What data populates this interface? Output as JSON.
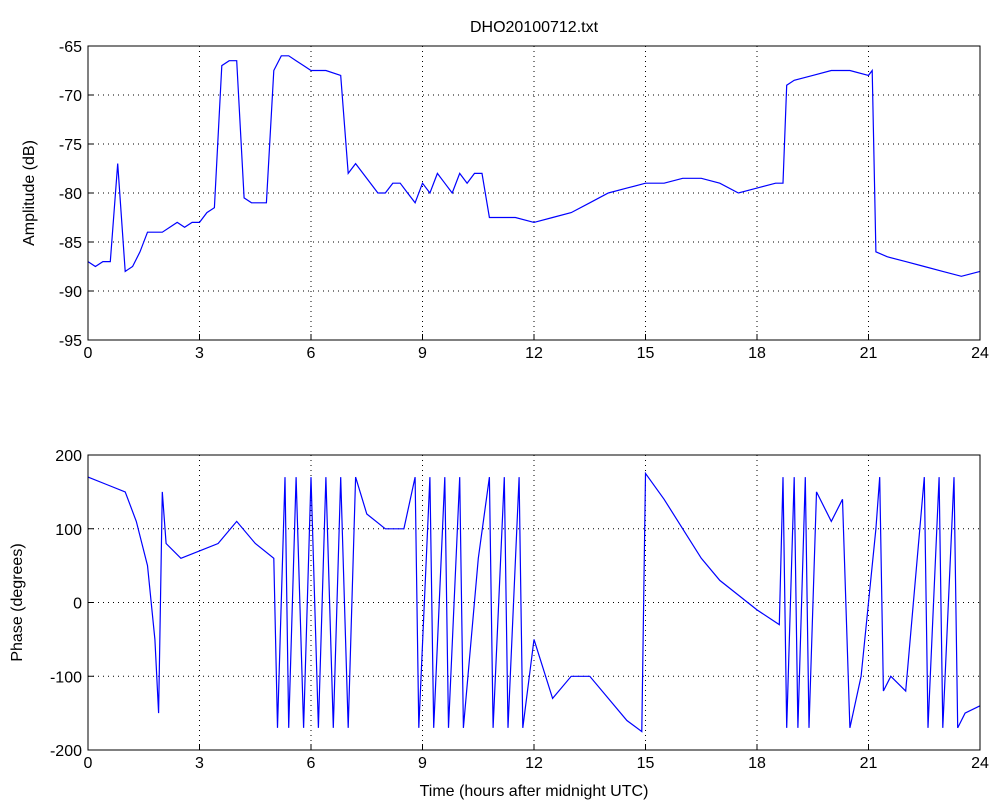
{
  "chart_data": [
    {
      "type": "line",
      "title": "DHO20100712.txt",
      "y_label": "Amplitude (dB)",
      "xlim": [
        0,
        24
      ],
      "xticks": [
        0,
        3,
        6,
        9,
        12,
        15,
        18,
        21,
        24
      ],
      "ylim": [
        -95,
        -65
      ],
      "yticks": [
        -95,
        -90,
        -85,
        -80,
        -75,
        -70,
        -65
      ],
      "grid": true,
      "series": [
        {
          "name": "Amplitude",
          "color": "#0000ff",
          "x": [
            0,
            0.2,
            0.4,
            0.6,
            0.8,
            1.0,
            1.2,
            1.4,
            1.6,
            1.8,
            2.0,
            2.2,
            2.4,
            2.6,
            2.8,
            3.0,
            3.2,
            3.4,
            3.6,
            3.8,
            4.0,
            4.2,
            4.4,
            4.6,
            4.8,
            5.0,
            5.2,
            5.4,
            5.6,
            5.8,
            6.0,
            6.4,
            6.8,
            7.0,
            7.2,
            7.4,
            7.6,
            7.8,
            8.0,
            8.2,
            8.4,
            8.6,
            8.8,
            9.0,
            9.2,
            9.4,
            9.6,
            9.8,
            10.0,
            10.2,
            10.4,
            10.6,
            10.8,
            11.5,
            12.0,
            12.5,
            13.0,
            13.5,
            14.0,
            14.5,
            15.0,
            15.5,
            16.0,
            16.5,
            17.0,
            17.5,
            18.0,
            18.5,
            18.7,
            18.8,
            19.0,
            19.5,
            20.0,
            20.5,
            21.0,
            21.1,
            21.2,
            21.5,
            22.0,
            22.5,
            23.0,
            23.5,
            24.0
          ],
          "values": [
            -87,
            -87.5,
            -87,
            -87,
            -77,
            -88,
            -87.5,
            -86,
            -84,
            -84,
            -84,
            -83.5,
            -83,
            -83.5,
            -83,
            -83,
            -82,
            -81.5,
            -67,
            -66.5,
            -66.5,
            -80.5,
            -81,
            -81,
            -81,
            -67.5,
            -66,
            -66,
            -66.5,
            -67,
            -67.5,
            -67.5,
            -68,
            -78,
            -77,
            -78,
            -79,
            -80,
            -80,
            -79,
            -79,
            -80,
            -81,
            -79,
            -80,
            -78,
            -79,
            -80,
            -78,
            -79,
            -78,
            -78,
            -82.5,
            -82.5,
            -83,
            -82.5,
            -82,
            -81,
            -80,
            -79.5,
            -79,
            -79,
            -78.5,
            -78.5,
            -79,
            -80,
            -79.5,
            -79,
            -79,
            -69,
            -68.5,
            -68,
            -67.5,
            -67.5,
            -68,
            -67.5,
            -86,
            -86.5,
            -87,
            -87.5,
            -88,
            -88.5,
            -88
          ]
        }
      ]
    },
    {
      "type": "line",
      "x_label": "Time (hours after midnight UTC)",
      "y_label": "Phase (degrees)",
      "xlim": [
        0,
        24
      ],
      "xticks": [
        0,
        3,
        6,
        9,
        12,
        15,
        18,
        21,
        24
      ],
      "ylim": [
        -200,
        200
      ],
      "yticks": [
        -200,
        -100,
        0,
        100,
        200
      ],
      "grid": true,
      "series": [
        {
          "name": "Phase",
          "color": "#0000ff",
          "x": [
            0,
            0.5,
            1.0,
            1.3,
            1.6,
            1.8,
            1.9,
            2.0,
            2.1,
            2.5,
            3.0,
            3.5,
            4.0,
            4.5,
            5.0,
            5.1,
            5.3,
            5.4,
            5.6,
            5.8,
            6.0,
            6.2,
            6.4,
            6.6,
            6.8,
            7.0,
            7.2,
            7.5,
            8.0,
            8.5,
            8.8,
            8.9,
            9.2,
            9.3,
            9.6,
            9.7,
            10.0,
            10.1,
            10.5,
            10.8,
            10.9,
            11.2,
            11.3,
            11.6,
            11.7,
            12.0,
            12.5,
            13.0,
            13.5,
            14.0,
            14.5,
            14.9,
            15.0,
            15.5,
            16.0,
            16.5,
            17.0,
            17.5,
            18.0,
            18.6,
            18.7,
            18.8,
            19.0,
            19.1,
            19.3,
            19.4,
            19.6,
            20.0,
            20.3,
            20.5,
            20.8,
            21.0,
            21.2,
            21.3,
            21.4,
            21.6,
            22.0,
            22.5,
            22.6,
            22.9,
            23.0,
            23.3,
            23.4,
            23.6,
            24.0
          ],
          "values": [
            170,
            160,
            150,
            110,
            50,
            -50,
            -150,
            150,
            80,
            60,
            70,
            80,
            110,
            80,
            60,
            -170,
            170,
            -170,
            170,
            -170,
            170,
            -170,
            170,
            -170,
            170,
            -170,
            170,
            120,
            100,
            100,
            170,
            -170,
            170,
            -170,
            170,
            -170,
            170,
            -170,
            60,
            170,
            -170,
            170,
            -170,
            170,
            -170,
            -50,
            -130,
            -100,
            -100,
            -130,
            -160,
            -175,
            175,
            140,
            100,
            60,
            30,
            10,
            -10,
            -30,
            170,
            -170,
            170,
            -170,
            170,
            -170,
            150,
            110,
            140,
            -170,
            -100,
            0,
            100,
            170,
            -120,
            -100,
            -120,
            170,
            -170,
            170,
            -170,
            170,
            -170,
            -150,
            -140
          ]
        }
      ]
    }
  ]
}
